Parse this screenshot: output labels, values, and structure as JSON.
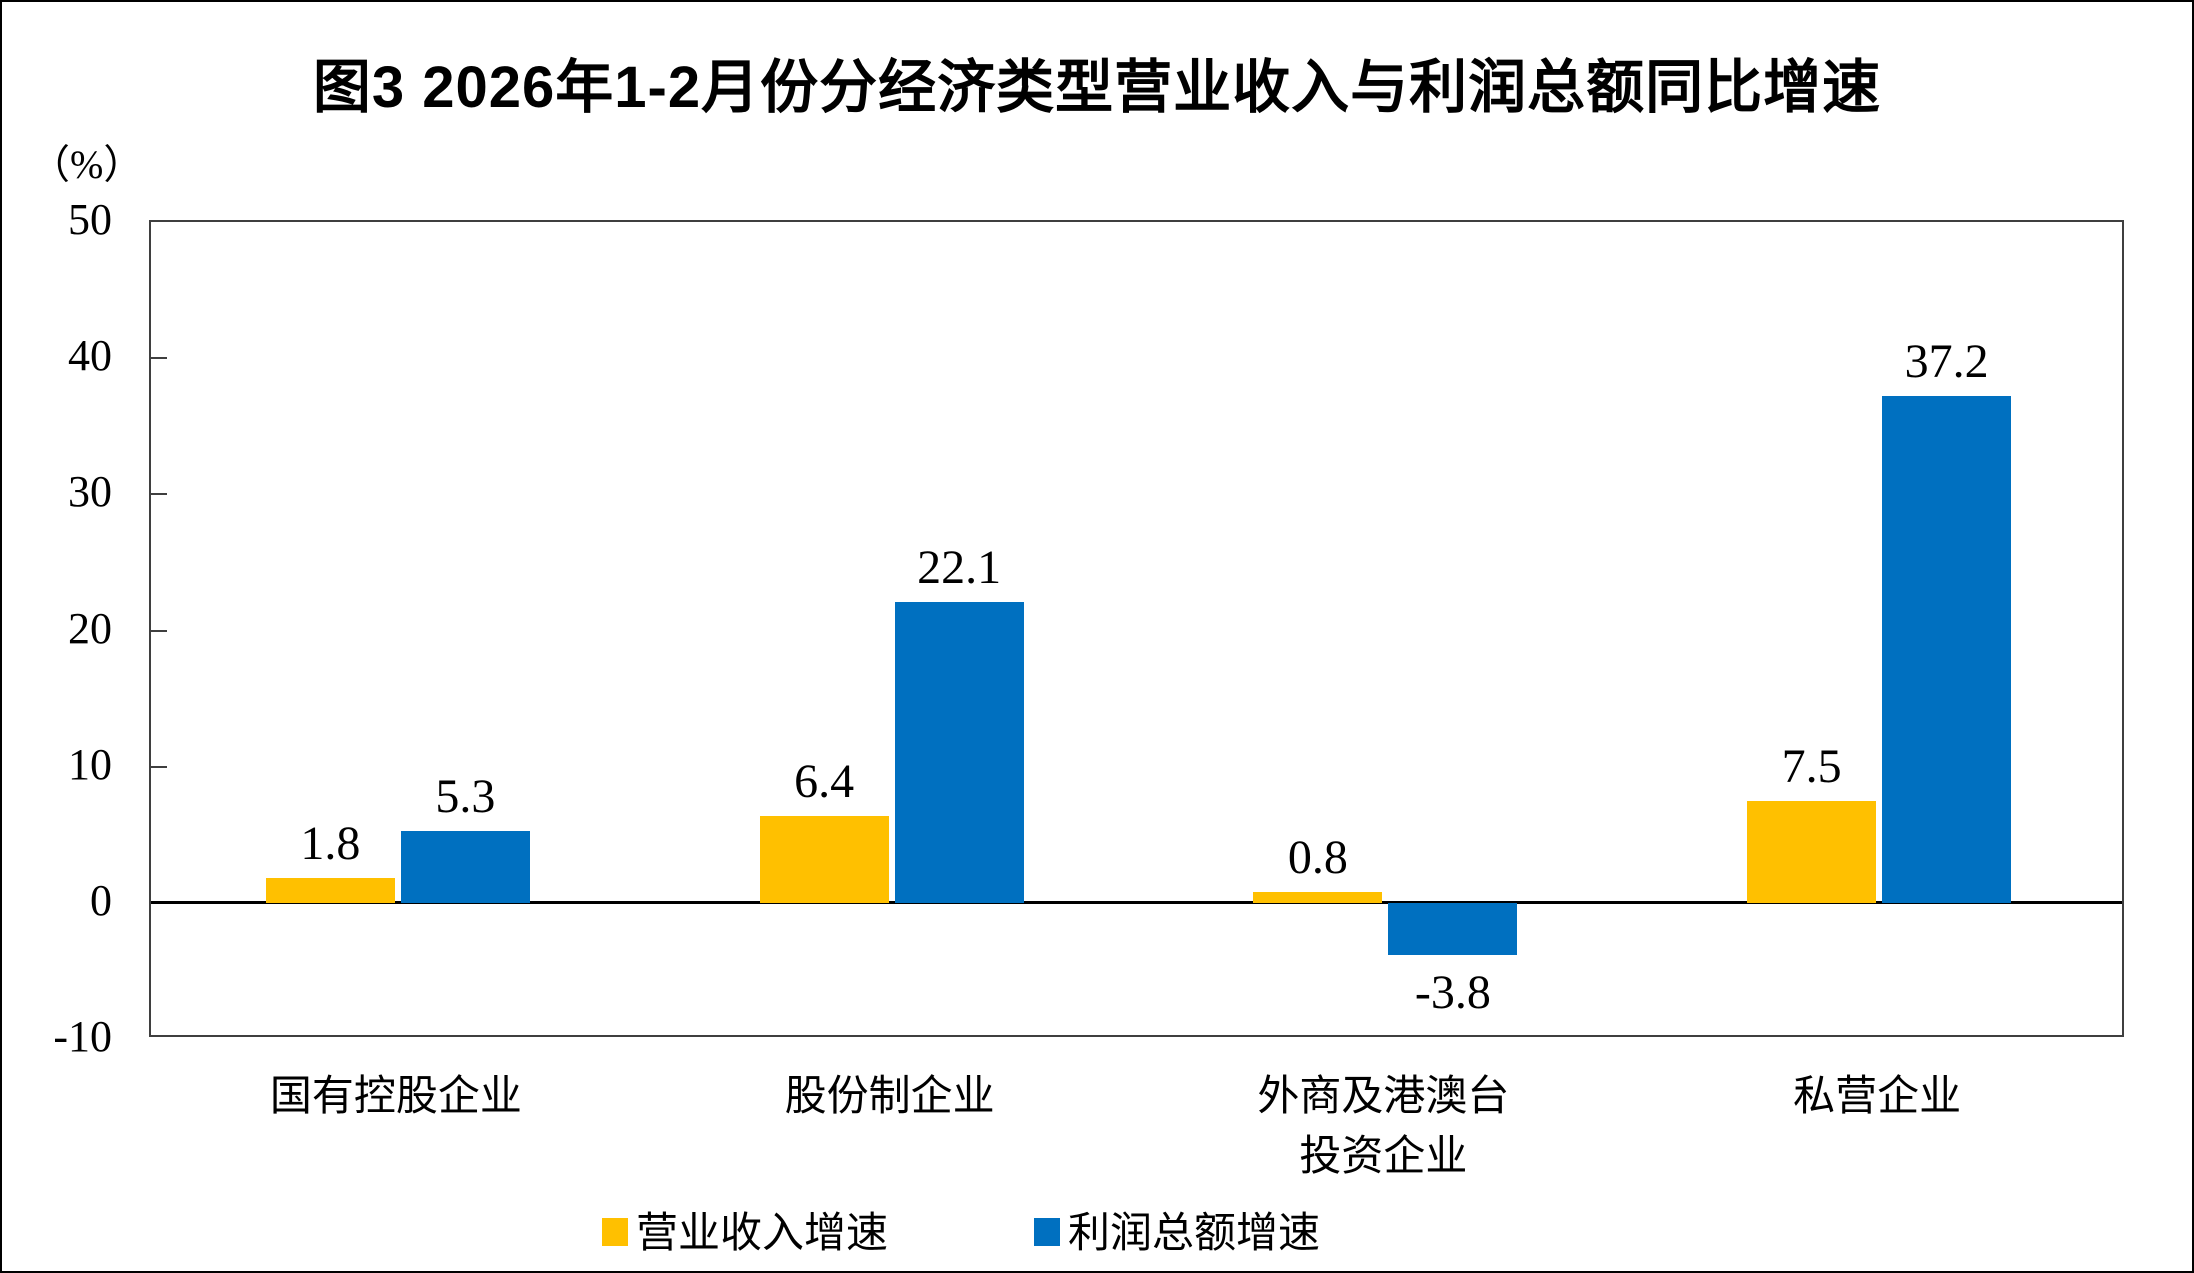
{
  "page": {
    "title": "图3 2026年1-2月份分经济类型营业收入与利润总额同比增速",
    "unit_label": "（%）"
  },
  "chart_data": {
    "type": "bar",
    "title": "图3 2026年1-2月份分经济类型营业收入与利润总额同比增速",
    "ylabel": "（%）",
    "unit": "%",
    "categories": [
      "国有控股企业",
      "股份制企业",
      "外商及港澳台\n投资企业",
      "私营企业"
    ],
    "series": [
      {
        "name": "营业收入增速",
        "color": "#FFC000",
        "values": [
          1.8,
          6.4,
          0.8,
          7.5
        ]
      },
      {
        "name": "利润总额增速",
        "color": "#0070C0",
        "values": [
          5.3,
          22.1,
          -3.8,
          37.2
        ]
      }
    ],
    "ylim": [
      -10,
      50
    ],
    "ytick_step": 10,
    "yticks": [
      50,
      40,
      30,
      20,
      10,
      0,
      -10
    ],
    "grid": false,
    "legend_position": "bottom",
    "value_labels_shown": true
  }
}
